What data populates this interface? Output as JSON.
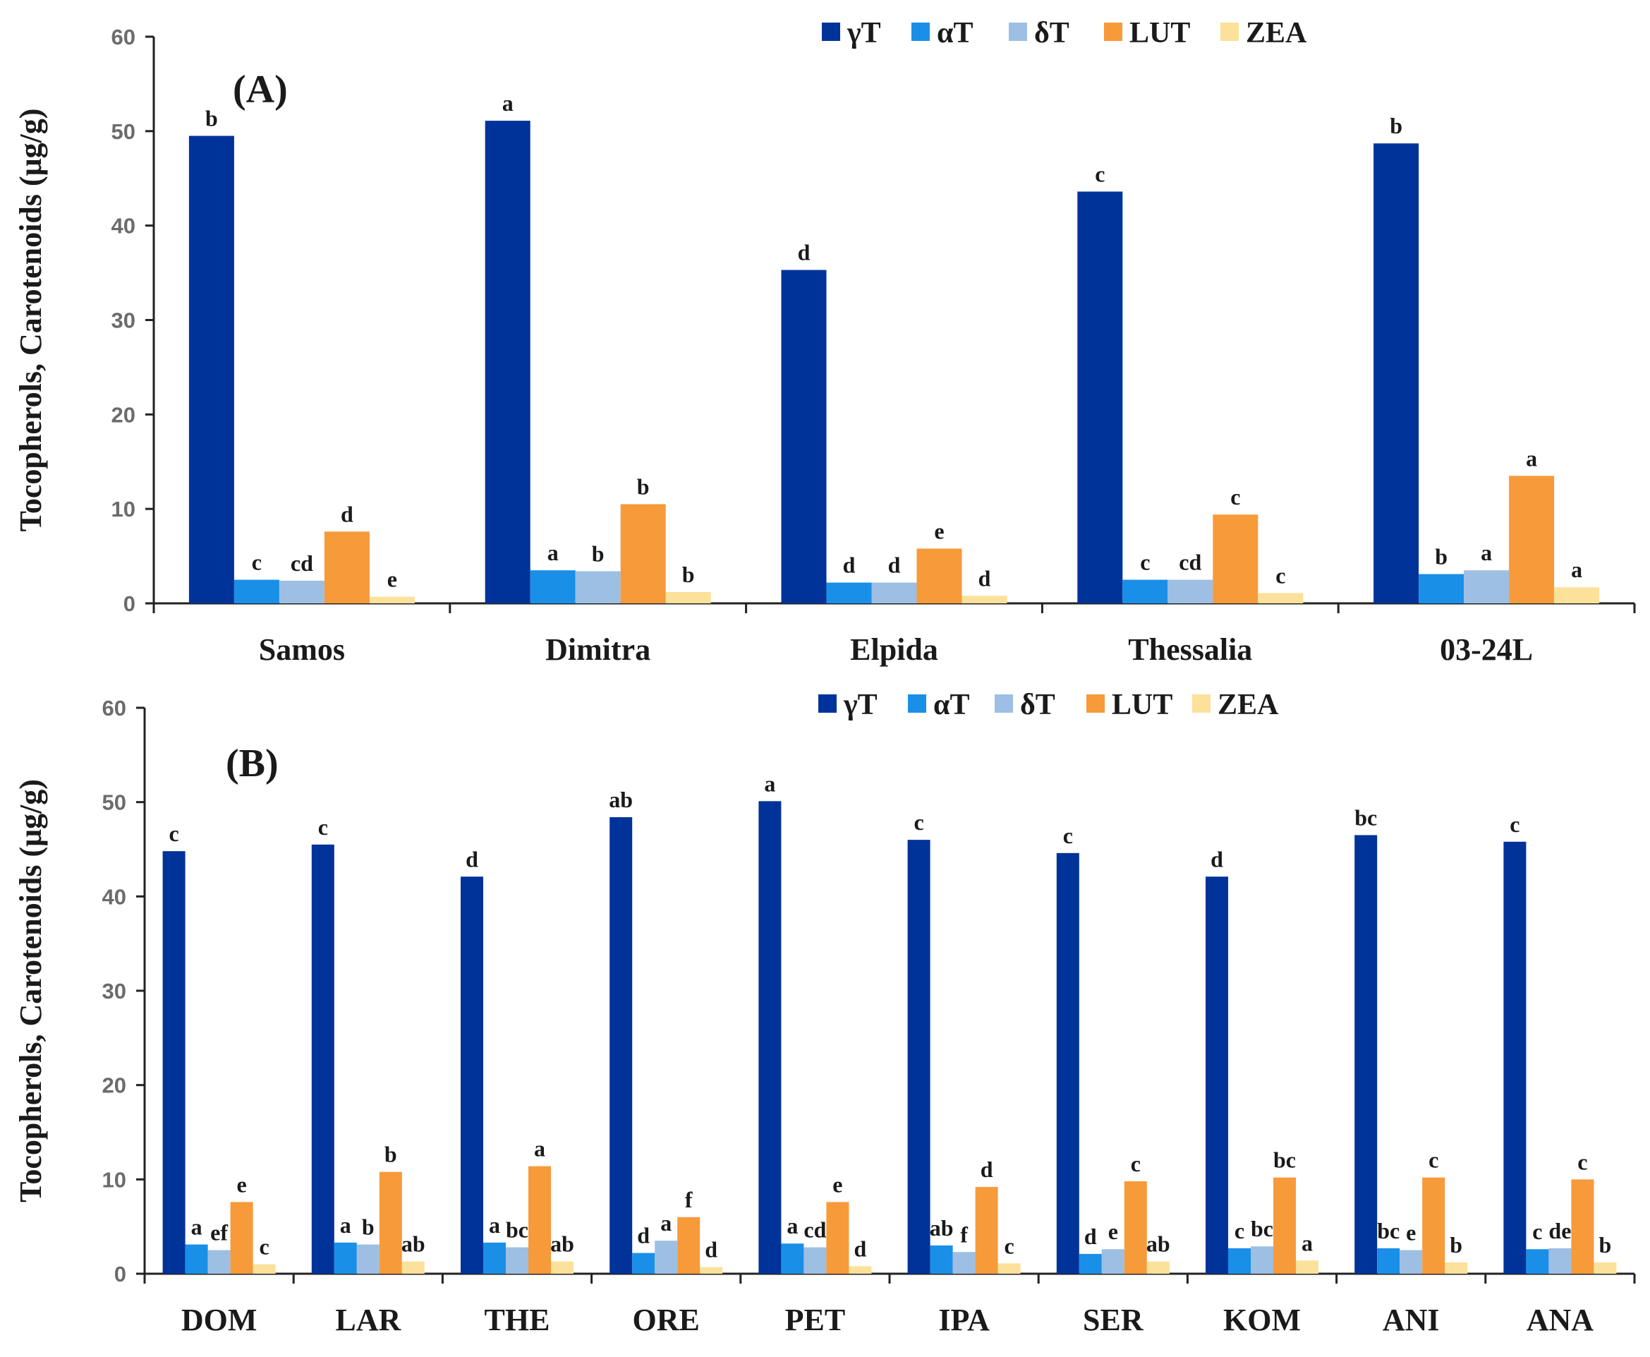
{
  "colors": {
    "gT": "#003399",
    "aT": "#1a8fe8",
    "dT": "#9dbfe3",
    "LUT": "#f79a3a",
    "ZEA": "#fbe19a",
    "axis": "#222222"
  },
  "chart_data": [
    {
      "type": "bar",
      "panel_label": "(A)",
      "ylabel": "Tocopherols, Carotenoids (μg/g)",
      "xlabel": "",
      "ylim": [
        0,
        60
      ],
      "yticks": [
        "0",
        "10",
        "20",
        "30",
        "40",
        "50",
        "60"
      ],
      "legend_position": "top-center",
      "categories": [
        "Samos",
        "Dimitra",
        "Elpida",
        "Thessalia",
        "03-24L"
      ],
      "series": [
        {
          "name": "γT",
          "color_key": "gT",
          "values": [
            49.5,
            51.1,
            35.3,
            43.6,
            48.7
          ],
          "letters": [
            "b",
            "a",
            "d",
            "c",
            "b"
          ]
        },
        {
          "name": "αT",
          "color_key": "aT",
          "values": [
            2.5,
            3.5,
            2.2,
            2.5,
            3.1
          ],
          "letters": [
            "c",
            "a",
            "d",
            "c",
            "b"
          ]
        },
        {
          "name": "δT",
          "color_key": "dT",
          "values": [
            2.4,
            3.4,
            2.2,
            2.5,
            3.5
          ],
          "letters": [
            "cd",
            "b",
            "d",
            "cd",
            "a"
          ]
        },
        {
          "name": "LUT",
          "color_key": "LUT",
          "values": [
            7.6,
            10.5,
            5.8,
            9.4,
            13.5
          ],
          "letters": [
            "d",
            "b",
            "e",
            "c",
            "a"
          ]
        },
        {
          "name": "ZEA",
          "color_key": "ZEA",
          "values": [
            0.7,
            1.2,
            0.8,
            1.1,
            1.7
          ],
          "letters": [
            "e",
            "b",
            "d",
            "c",
            "a"
          ]
        }
      ]
    },
    {
      "type": "bar",
      "panel_label": "(B)",
      "ylabel": "Tocopherols, Carotenoids (μg/g)",
      "xlabel": "",
      "ylim": [
        0,
        60
      ],
      "yticks": [
        "0",
        "10",
        "20",
        "30",
        "40",
        "50",
        "60"
      ],
      "legend_position": "top-center",
      "categories": [
        "DOM",
        "LAR",
        "THE",
        "ORE",
        "PET",
        "IPA",
        "SER",
        "KOM",
        "ANI",
        "ANA"
      ],
      "series": [
        {
          "name": "γT",
          "color_key": "gT",
          "values": [
            44.8,
            45.5,
            42.1,
            48.4,
            50.1,
            46.0,
            44.6,
            42.1,
            46.5,
            45.8
          ],
          "letters": [
            "c",
            "c",
            "d",
            "ab",
            "a",
            "c",
            "c",
            "d",
            "bc",
            "c"
          ]
        },
        {
          "name": "αT",
          "color_key": "aT",
          "values": [
            3.1,
            3.3,
            3.3,
            2.2,
            3.2,
            3.0,
            2.1,
            2.7,
            2.7,
            2.6
          ],
          "letters": [
            "a",
            "a",
            "a",
            "d",
            "a",
            "ab",
            "d",
            "c",
            "bc",
            "c"
          ]
        },
        {
          "name": "δT",
          "color_key": "dT",
          "values": [
            2.5,
            3.1,
            2.8,
            3.5,
            2.8,
            2.3,
            2.6,
            2.9,
            2.5,
            2.7
          ],
          "letters": [
            "ef",
            "b",
            "bc",
            "a",
            "cd",
            "f",
            "e",
            "bc",
            "e",
            "de"
          ]
        },
        {
          "name": "LUT",
          "color_key": "LUT",
          "values": [
            7.6,
            10.8,
            11.4,
            6.0,
            7.6,
            9.2,
            9.8,
            10.2,
            10.2,
            10.0
          ],
          "letters": [
            "e",
            "b",
            "a",
            "f",
            "e",
            "d",
            "c",
            "bc",
            "c",
            "c"
          ]
        },
        {
          "name": "ZEA",
          "color_key": "ZEA",
          "values": [
            1.0,
            1.3,
            1.3,
            0.7,
            0.8,
            1.1,
            1.3,
            1.4,
            1.2,
            1.2
          ],
          "letters": [
            "c",
            "ab",
            "ab",
            "d",
            "d",
            "c",
            "ab",
            "a",
            "b",
            "b"
          ]
        }
      ]
    }
  ]
}
